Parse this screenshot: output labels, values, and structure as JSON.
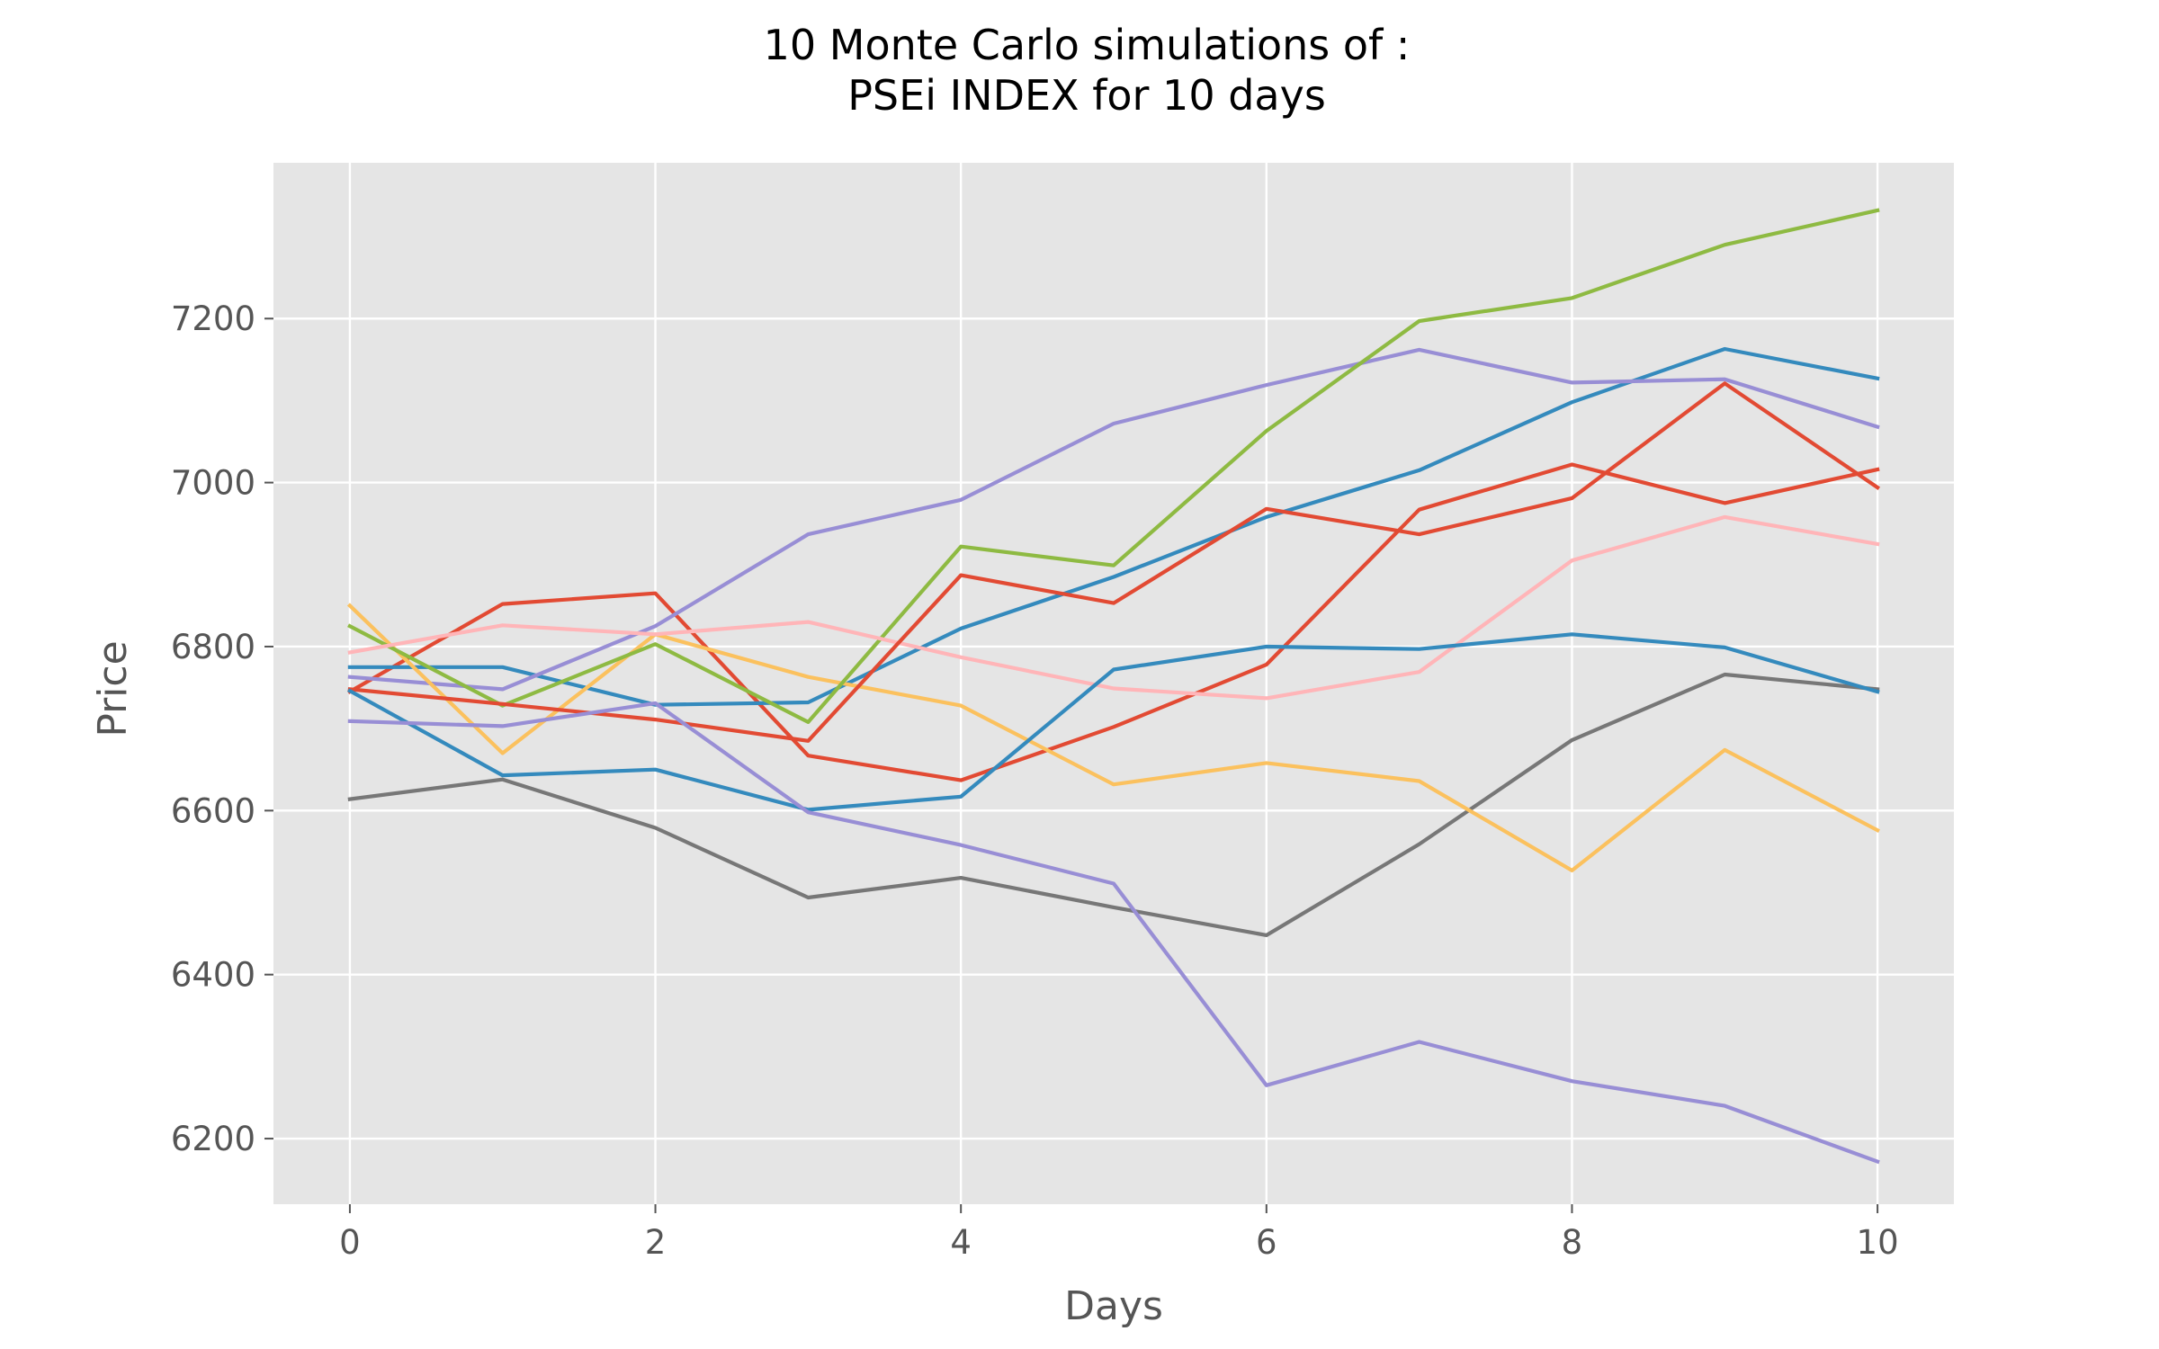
{
  "chart_data": {
    "type": "line",
    "title_line1": "10 Monte Carlo simulations of :",
    "title_line2": "PSEi INDEX for 10 days",
    "xlabel": "Days",
    "ylabel": "Price",
    "xlim": [
      -0.5,
      10.5
    ],
    "ylim": [
      6120,
      7390
    ],
    "xticks": [
      0,
      2,
      4,
      6,
      8,
      10
    ],
    "yticks": [
      6200,
      6400,
      6600,
      6800,
      7000,
      7200
    ],
    "grid": true,
    "background": "#e5e5e5",
    "grid_color": "#ffffff",
    "x": [
      0,
      1,
      2,
      3,
      4,
      5,
      6,
      7,
      8,
      9,
      10
    ],
    "series": [
      {
        "color": "#e24a33",
        "values": [
          6745,
          6852,
          6865,
          6667,
          6637,
          6702,
          6778,
          6967,
          7022,
          6975,
          7016
        ]
      },
      {
        "color": "#348abd",
        "values": [
          6775,
          6775,
          6729,
          6732,
          6822,
          6885,
          6958,
          7015,
          7098,
          7163,
          7127
        ]
      },
      {
        "color": "#988ed5",
        "values": [
          6763,
          6748,
          6825,
          6937,
          6979,
          7072,
          7119,
          7162,
          7122,
          7126,
          7068
        ]
      },
      {
        "color": "#777777",
        "values": [
          6614,
          6638,
          6579,
          6494,
          6518,
          6482,
          6448,
          6559,
          6686,
          6766,
          6748
        ]
      },
      {
        "color": "#fbc15e",
        "values": [
          6850,
          6670,
          6815,
          6763,
          6728,
          6632,
          6658,
          6636,
          6527,
          6674,
          6576
        ]
      },
      {
        "color": "#8eba42",
        "values": [
          6825,
          6728,
          6803,
          6708,
          6922,
          6899,
          7063,
          7197,
          7225,
          7290,
          7332
        ]
      },
      {
        "color": "#ffb5b8",
        "values": [
          6793,
          6826,
          6815,
          6830,
          6787,
          6749,
          6737,
          6769,
          6905,
          6958,
          6925
        ]
      },
      {
        "color": "#e24a33",
        "values": [
          6748,
          6730,
          6711,
          6685,
          6887,
          6853,
          6968,
          6937,
          6981,
          7121,
          6994
        ]
      },
      {
        "color": "#348abd",
        "values": [
          6746,
          6643,
          6650,
          6601,
          6617,
          6772,
          6800,
          6797,
          6815,
          6799,
          6745
        ]
      },
      {
        "color": "#988ed5",
        "values": [
          6709,
          6703,
          6731,
          6598,
          6558,
          6511,
          6265,
          6318,
          6270,
          6240,
          6172
        ]
      }
    ]
  }
}
